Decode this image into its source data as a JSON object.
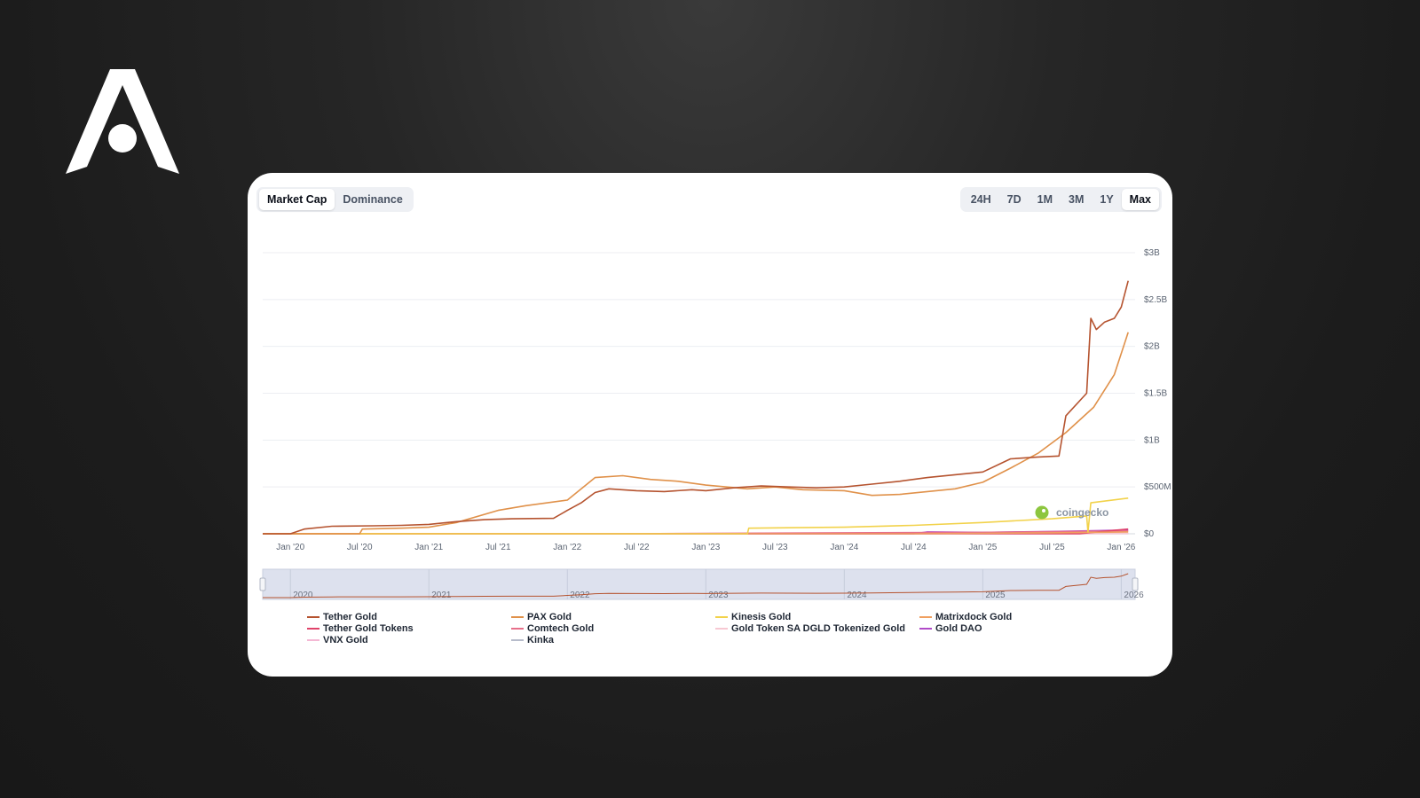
{
  "brand": {
    "logo": "logo-icon"
  },
  "toolbar": {
    "tabs": [
      {
        "label": "Market Cap",
        "active": true
      },
      {
        "label": "Dominance",
        "active": false
      }
    ],
    "ranges": [
      {
        "label": "24H",
        "active": false
      },
      {
        "label": "7D",
        "active": false
      },
      {
        "label": "1M",
        "active": false
      },
      {
        "label": "3M",
        "active": false
      },
      {
        "label": "1Y",
        "active": false
      },
      {
        "label": "Max",
        "active": true
      }
    ]
  },
  "watermark": {
    "text": "coingecko",
    "icon": "gecko-icon"
  },
  "chart_data": {
    "type": "line",
    "title": "",
    "xlabel": "",
    "ylabel": "",
    "x_range": [
      2019.8,
      2026.1
    ],
    "ylim": [
      0,
      3000000000
    ],
    "y_ticks": [
      {
        "value": 0,
        "label": "$0"
      },
      {
        "value": 500000000,
        "label": "$500M"
      },
      {
        "value": 1000000000,
        "label": "$1B"
      },
      {
        "value": 1500000000,
        "label": "$1.5B"
      },
      {
        "value": 2000000000,
        "label": "$2B"
      },
      {
        "value": 2500000000,
        "label": "$2.5B"
      },
      {
        "value": 3000000000,
        "label": "$3B"
      }
    ],
    "x_ticks": [
      {
        "value": 2020.0,
        "label": "Jan '20"
      },
      {
        "value": 2020.5,
        "label": "Jul '20"
      },
      {
        "value": 2021.0,
        "label": "Jan '21"
      },
      {
        "value": 2021.5,
        "label": "Jul '21"
      },
      {
        "value": 2022.0,
        "label": "Jan '22"
      },
      {
        "value": 2022.5,
        "label": "Jul '22"
      },
      {
        "value": 2023.0,
        "label": "Jan '23"
      },
      {
        "value": 2023.5,
        "label": "Jul '23"
      },
      {
        "value": 2024.0,
        "label": "Jan '24"
      },
      {
        "value": 2024.5,
        "label": "Jul '24"
      },
      {
        "value": 2025.0,
        "label": "Jan '25"
      },
      {
        "value": 2025.5,
        "label": "Jul '25"
      },
      {
        "value": 2026.0,
        "label": "Jan '26"
      }
    ],
    "navigator_labels": [
      "2020",
      "2021",
      "2022",
      "2023",
      "2024",
      "2025",
      "2026"
    ],
    "navigator_range": [
      2019.8,
      2026.1
    ],
    "series": [
      {
        "name": "Tether Gold",
        "color": "#b5532f",
        "points": [
          [
            2019.8,
            0
          ],
          [
            2020.0,
            0
          ],
          [
            2020.1,
            50000000
          ],
          [
            2020.3,
            80000000
          ],
          [
            2020.6,
            85000000
          ],
          [
            2020.8,
            90000000
          ],
          [
            2021.0,
            100000000
          ],
          [
            2021.2,
            130000000
          ],
          [
            2021.4,
            150000000
          ],
          [
            2021.6,
            160000000
          ],
          [
            2021.9,
            165000000
          ],
          [
            2022.0,
            250000000
          ],
          [
            2022.1,
            330000000
          ],
          [
            2022.2,
            440000000
          ],
          [
            2022.3,
            480000000
          ],
          [
            2022.5,
            460000000
          ],
          [
            2022.7,
            450000000
          ],
          [
            2022.9,
            470000000
          ],
          [
            2023.0,
            460000000
          ],
          [
            2023.2,
            490000000
          ],
          [
            2023.4,
            510000000
          ],
          [
            2023.6,
            500000000
          ],
          [
            2023.8,
            490000000
          ],
          [
            2024.0,
            500000000
          ],
          [
            2024.2,
            530000000
          ],
          [
            2024.4,
            560000000
          ],
          [
            2024.6,
            600000000
          ],
          [
            2024.8,
            630000000
          ],
          [
            2025.0,
            660000000
          ],
          [
            2025.2,
            800000000
          ],
          [
            2025.4,
            820000000
          ],
          [
            2025.55,
            830000000
          ],
          [
            2025.6,
            1260000000
          ],
          [
            2025.75,
            1500000000
          ],
          [
            2025.78,
            2300000000
          ],
          [
            2025.82,
            2180000000
          ],
          [
            2025.88,
            2260000000
          ],
          [
            2025.95,
            2300000000
          ],
          [
            2026.0,
            2420000000
          ],
          [
            2026.05,
            2700000000
          ]
        ]
      },
      {
        "name": "PAX Gold",
        "color": "#e0914a",
        "points": [
          [
            2019.8,
            0
          ],
          [
            2020.0,
            0
          ],
          [
            2020.5,
            0
          ],
          [
            2020.52,
            50000000
          ],
          [
            2020.8,
            60000000
          ],
          [
            2021.0,
            70000000
          ],
          [
            2021.2,
            120000000
          ],
          [
            2021.5,
            250000000
          ],
          [
            2021.7,
            300000000
          ],
          [
            2022.0,
            360000000
          ],
          [
            2022.2,
            600000000
          ],
          [
            2022.4,
            620000000
          ],
          [
            2022.6,
            580000000
          ],
          [
            2022.8,
            560000000
          ],
          [
            2023.0,
            520000000
          ],
          [
            2023.3,
            480000000
          ],
          [
            2023.5,
            500000000
          ],
          [
            2023.7,
            470000000
          ],
          [
            2024.0,
            460000000
          ],
          [
            2024.2,
            410000000
          ],
          [
            2024.4,
            420000000
          ],
          [
            2024.6,
            450000000
          ],
          [
            2024.8,
            480000000
          ],
          [
            2025.0,
            550000000
          ],
          [
            2025.2,
            700000000
          ],
          [
            2025.4,
            860000000
          ],
          [
            2025.6,
            1080000000
          ],
          [
            2025.8,
            1350000000
          ],
          [
            2025.95,
            1700000000
          ],
          [
            2026.05,
            2150000000
          ]
        ]
      },
      {
        "name": "Kinesis Gold",
        "color": "#f2d24a",
        "points": [
          [
            2019.8,
            0
          ],
          [
            2023.3,
            0
          ],
          [
            2023.31,
            60000000
          ],
          [
            2024.0,
            70000000
          ],
          [
            2024.5,
            90000000
          ],
          [
            2025.0,
            120000000
          ],
          [
            2025.5,
            160000000
          ],
          [
            2025.75,
            190000000
          ],
          [
            2025.76,
            20000000
          ],
          [
            2025.78,
            330000000
          ],
          [
            2026.05,
            380000000
          ]
        ]
      },
      {
        "name": "Matrixdock Gold",
        "color": "#f0a060",
        "points": [
          [
            2019.8,
            0
          ],
          [
            2024.5,
            0
          ],
          [
            2025.0,
            5000000
          ],
          [
            2025.5,
            10000000
          ],
          [
            2026.05,
            20000000
          ]
        ]
      },
      {
        "name": "Tether Gold Tokens",
        "color": "#e0436a",
        "points": [
          [
            2019.8,
            0
          ],
          [
            2025.7,
            0
          ],
          [
            2025.9,
            30000000
          ],
          [
            2026.05,
            50000000
          ]
        ]
      },
      {
        "name": "Comtech Gold",
        "color": "#e76f8a",
        "points": [
          [
            2019.8,
            0
          ],
          [
            2022.4,
            0
          ],
          [
            2023.0,
            5000000
          ],
          [
            2024.0,
            10000000
          ],
          [
            2025.0,
            15000000
          ],
          [
            2026.05,
            30000000
          ]
        ]
      },
      {
        "name": "Gold Token SA DGLD Tokenized Gold",
        "color": "#f7c8d2",
        "points": [
          [
            2019.8,
            0
          ],
          [
            2026.05,
            5000000
          ]
        ]
      },
      {
        "name": "Gold DAO",
        "color": "#b04ac8",
        "points": [
          [
            2019.8,
            0
          ],
          [
            2024.5,
            0
          ],
          [
            2024.6,
            20000000
          ],
          [
            2025.0,
            15000000
          ],
          [
            2025.5,
            25000000
          ],
          [
            2026.05,
            40000000
          ]
        ]
      },
      {
        "name": "VNX Gold",
        "color": "#f4b8d4",
        "points": [
          [
            2019.8,
            0
          ],
          [
            2026.05,
            3000000
          ]
        ]
      },
      {
        "name": "Kinka",
        "color": "#b7bccb",
        "points": [
          [
            2019.8,
            0
          ],
          [
            2026.05,
            2000000
          ]
        ]
      }
    ]
  }
}
